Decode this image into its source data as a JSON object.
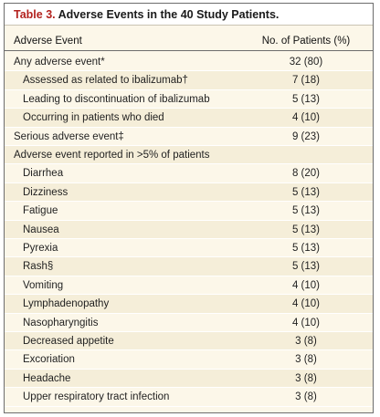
{
  "table": {
    "number_label": "Table 3.",
    "title_text": "Adverse Events in the 40 Study Patients.",
    "col_event": "Adverse Event",
    "col_patients": "No. of Patients (%)",
    "rows": [
      {
        "label": "Any adverse event*",
        "value": "32 (80)",
        "indent": 0
      },
      {
        "label": "Assessed as related to ibalizumab†",
        "value": "7 (18)",
        "indent": 1
      },
      {
        "label": "Leading to discontinuation of ibalizumab",
        "value": "5 (13)",
        "indent": 1
      },
      {
        "label": "Occurring in patients who died",
        "value": "4 (10)",
        "indent": 1
      },
      {
        "label": "Serious adverse event‡",
        "value": "9 (23)",
        "indent": 0
      },
      {
        "label": "Adverse event reported in >5% of patients",
        "value": "",
        "indent": 0
      },
      {
        "label": "Diarrhea",
        "value": "8 (20)",
        "indent": 1
      },
      {
        "label": "Dizziness",
        "value": "5 (13)",
        "indent": 1
      },
      {
        "label": "Fatigue",
        "value": "5 (13)",
        "indent": 1
      },
      {
        "label": "Nausea",
        "value": "5 (13)",
        "indent": 1
      },
      {
        "label": "Pyrexia",
        "value": "5 (13)",
        "indent": 1
      },
      {
        "label": "Rash§",
        "value": "5 (13)",
        "indent": 1
      },
      {
        "label": "Vomiting",
        "value": "4 (10)",
        "indent": 1
      },
      {
        "label": "Lymphadenopathy",
        "value": "4 (10)",
        "indent": 1
      },
      {
        "label": "Nasopharyngitis",
        "value": "4 (10)",
        "indent": 1
      },
      {
        "label": "Decreased appetite",
        "value": "3 (8)",
        "indent": 1
      },
      {
        "label": "Excoriation",
        "value": "3 (8)",
        "indent": 1
      },
      {
        "label": "Headache",
        "value": "3 (8)",
        "indent": 1
      },
      {
        "label": "Upper respiratory tract infection",
        "value": "3 (8)",
        "indent": 1
      }
    ]
  }
}
